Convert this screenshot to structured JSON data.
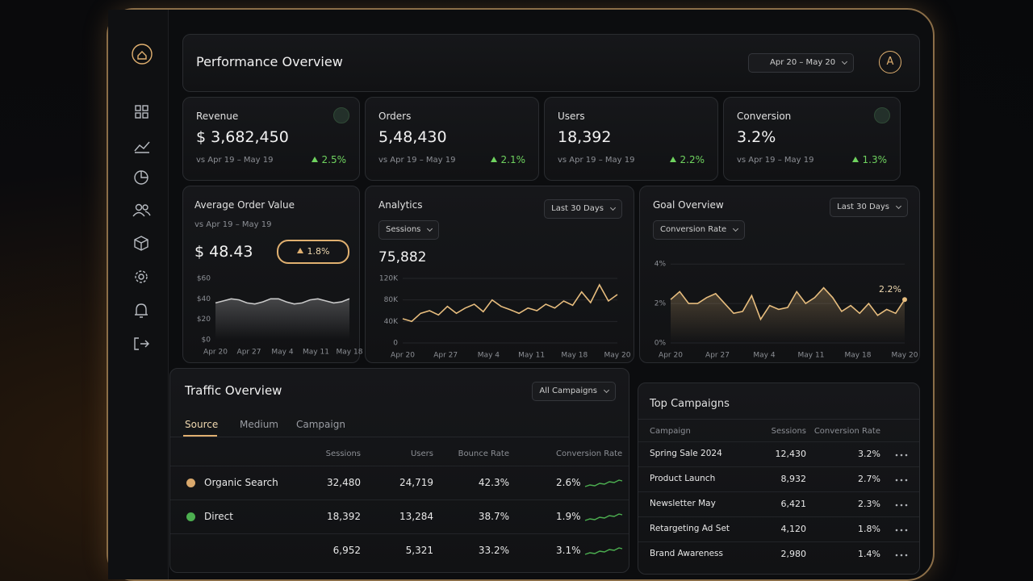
{
  "header": {
    "title": "Performance Overview",
    "date_range": "Apr 20 – May 20",
    "avatar": "A"
  },
  "kpis": [
    {
      "label": "Revenue",
      "value": "$ 3,682,450",
      "compare": "vs Apr 19 – May 19",
      "change": "2.5%"
    },
    {
      "label": "Orders",
      "value": "5,48,430",
      "compare": "vs Apr 19 – May 19",
      "change": "2.1%"
    },
    {
      "label": "Users",
      "value": "18,392",
      "compare": "vs Apr 19 – May 19",
      "change": "2.2%"
    },
    {
      "label": "Conversion",
      "value": "3.2%",
      "compare": "vs Apr 19 – May 19",
      "change": "1.3%"
    }
  ],
  "aov": {
    "title": "Average Order Value",
    "compare": "vs Apr 19 – May 19",
    "value": "$ 48.43",
    "change": "1.8%",
    "chart_data": {
      "type": "area",
      "color": "#c9c9c9",
      "grid": false,
      "x_labels": [
        "Apr 20",
        "Apr 27",
        "May 4",
        "May 11",
        "May 18"
      ],
      "values": [
        36,
        38,
        40,
        39,
        36,
        35,
        37,
        40,
        40,
        37,
        35,
        36,
        39,
        40,
        38,
        36,
        37,
        40
      ],
      "ylim": [
        0,
        60
      ],
      "yticks": [
        {
          "value": 0,
          "label": "$0"
        },
        {
          "value": 20,
          "label": "$20"
        },
        {
          "value": 40,
          "label": "$40"
        },
        {
          "value": 60,
          "label": "$60"
        }
      ]
    }
  },
  "analytics": {
    "title": "Analytics",
    "metric": "Sessions",
    "period": "Last 30 Days",
    "value": "75,882",
    "chart_data": {
      "type": "line",
      "color": "#e7bd7e",
      "grid": true,
      "x_labels": [
        "Apr 20",
        "Apr 27",
        "May 4",
        "May 11",
        "May 18",
        "May 20"
      ],
      "values": [
        45000,
        40000,
        55000,
        60000,
        52000,
        68000,
        55000,
        65000,
        72000,
        58000,
        80000,
        68000,
        62000,
        55000,
        65000,
        60000,
        72000,
        65000,
        78000,
        70000,
        95000,
        75000,
        108000,
        78000,
        90000
      ],
      "ylim": [
        0,
        120000
      ],
      "yticks": [
        0,
        {
          "value": 40000,
          "label": "40K"
        },
        {
          "value": 80000,
          "label": "80K"
        },
        {
          "value": 120000,
          "label": "120K"
        }
      ]
    }
  },
  "goal": {
    "title": "Goal Overview",
    "metric": "Conversion Rate",
    "period": "Last 30 Days",
    "chart_data": {
      "type": "area",
      "color": "#e7bd7e",
      "grid": true,
      "x_labels": [
        "Apr 20",
        "Apr 27",
        "May 4",
        "May 11",
        "May 18",
        "May 20"
      ],
      "values": [
        2.2,
        2.6,
        2.0,
        2.0,
        2.3,
        2.5,
        2.0,
        1.5,
        1.6,
        2.4,
        1.2,
        1.9,
        1.7,
        1.8,
        2.6,
        2.0,
        2.3,
        2.8,
        2.3,
        1.6,
        1.9,
        1.5,
        2.0,
        1.4,
        1.7,
        1.5,
        2.2
      ],
      "end_label": "2.2%",
      "ylim": [
        0,
        4.5
      ],
      "yticks": [
        {
          "value": 0,
          "label": "0%"
        },
        {
          "value": 2,
          "label": "2%"
        },
        {
          "value": 4,
          "label": "4%"
        }
      ]
    }
  },
  "traffic": {
    "title": "Traffic Overview",
    "filter": "All Campaigns",
    "tabs": [
      "Source",
      "Medium",
      "Campaign"
    ],
    "columns": [
      "Sessions",
      "Users",
      "Bounce Rate",
      "Conversion Rate"
    ],
    "rows": [
      {
        "source": "Organic Search",
        "dot_color": "#d9a86c",
        "cells": [
          "32,480",
          "24,719",
          "42.3%",
          "2.6%"
        ]
      },
      {
        "source": "Direct",
        "dot_color": "#4caf50",
        "cells": [
          "18,392",
          "13,284",
          "38.7%",
          "1.9%"
        ]
      },
      {
        "cells": [
          "6,952",
          "5,321",
          "33.2%",
          "3.1%"
        ]
      }
    ]
  },
  "campaigns": {
    "title": "Top Campaigns",
    "columns": [
      "Campaign",
      "Sessions",
      "Conversion Rate"
    ],
    "rows": [
      [
        "Spring Sale 2024",
        "12,430",
        "3.2%"
      ],
      [
        "Product Launch",
        "8,932",
        "2.7%"
      ],
      [
        "Newsletter May",
        "6,421",
        "2.3%"
      ],
      [
        "Retargeting Ad Set",
        "4,120",
        "1.8%"
      ],
      [
        "Brand Awareness",
        "2,980",
        "1.4%"
      ]
    ]
  }
}
